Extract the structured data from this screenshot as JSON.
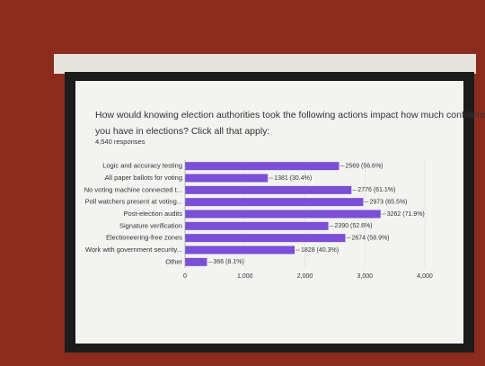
{
  "chart_data": {
    "type": "bar",
    "orientation": "horizontal",
    "title": "How would knowing election authorities took the following actions impact how much confidence you have in elections? Click all that apply:",
    "subtitle": "4,540 responses",
    "categories": [
      "Logic and accuracy testing",
      "All paper ballots for voting",
      "No voting machine connected t...",
      "Poll watchers present at voting...",
      "Post-election audits",
      "Signature verification",
      "Electioneering-free zones",
      "Work with government security...",
      "Other"
    ],
    "values": [
      2569,
      1381,
      2776,
      2973,
      3262,
      2390,
      2674,
      1828,
      366
    ],
    "value_labels": [
      "2569 (56.6%)",
      "1381 (30.4%)",
      "2776 (61.1%)",
      "2973 (65.5%)",
      "3262 (71.9%)",
      "2390 (52.6%)",
      "2674 (58.9%)",
      "1828 (40.3%)",
      "366 (8.1%)"
    ],
    "color": "#7b4fd6",
    "xlim": [
      0,
      4000
    ],
    "xticks": [
      0,
      {
        "value": 1000,
        "label": "1,000"
      },
      {
        "value": 2000,
        "label": "2,000"
      },
      {
        "value": 3000,
        "label": "3,000"
      },
      {
        "value": 4000,
        "label": "4,000"
      }
    ],
    "grid": true
  }
}
